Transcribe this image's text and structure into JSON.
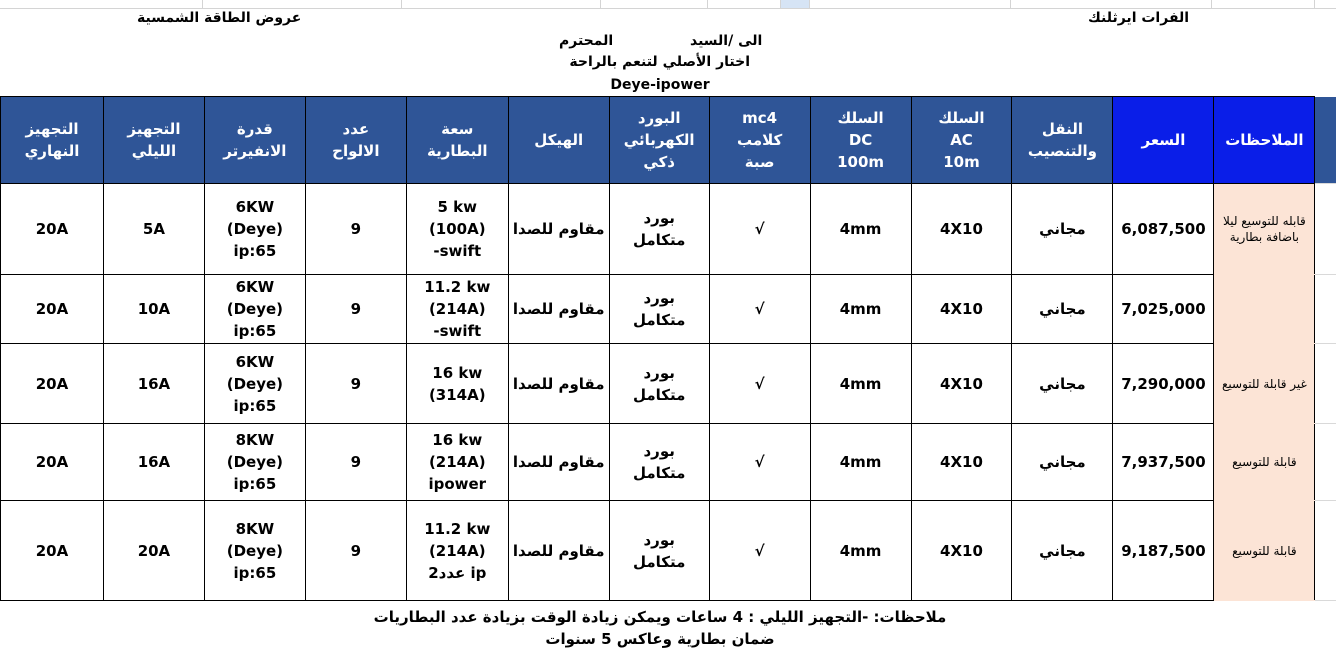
{
  "header": {
    "offers_title": "عروض الطاقة الشمسية",
    "company": "الفرات ايرثلنك",
    "to_sir": "الى /السيد",
    "respected": "المحترم",
    "slogan": "اختار الأصلي لتنعم بالراحة",
    "brand": "Deye-ipower"
  },
  "colors": {
    "header_bg": "#2F5597",
    "highlight_header_bg": "#0A1EE8",
    "notes_bg": "#FCE4D6"
  },
  "table": {
    "columns": [
      "التجهيز\nالنهاري",
      "التجهيز\nالليلي",
      "قدرة\nالانفيرتر",
      "عدد\nالالواح",
      "سعة\nالبطارية",
      "الهيكل",
      "البورد\nالكهربائي\nذكي",
      "mc4\nكلامب\nصبة",
      "السلك\nDC\n100m",
      "السلك\nAC\n10m",
      "النقل\nوالتنصيب",
      "السعر",
      "الملاحظات"
    ],
    "rows": [
      {
        "cells": [
          "20A",
          "5A",
          "6KW (Deye)\nip:65",
          "9",
          "5 kw (100A)\n-swift",
          "مقاوم للصدا",
          "بورد\nمتكامل",
          "√",
          "4mm",
          "4X10",
          "مجاني",
          "6,087,500"
        ],
        "note": "قابله للتوسيع ليلا\nباضافة بطارية"
      },
      {
        "cells": [
          "20A",
          "10A",
          "6KW (Deye)\nip:65",
          "9",
          "11.2 kw\n(214A)\n-swift",
          "مقاوم للصدا",
          "بورد\nمتكامل",
          "√",
          "4mm",
          "4X10",
          "مجاني",
          "7,025,000"
        ],
        "note": ""
      },
      {
        "cells": [
          "20A",
          "16A",
          "6KW (Deye)\nip:65",
          "9",
          "16 kw\n(314A)",
          "مقاوم للصدا",
          "بورد\nمتكامل",
          "√",
          "4mm",
          "4X10",
          "مجاني",
          "7,290,000"
        ],
        "note": "غير قابلة للتوسيع"
      },
      {
        "cells": [
          "20A",
          "16A",
          "8KW (Deye)\nip:65",
          "9",
          "16 kw\n(214A)\nipower",
          "مقاوم للصدا",
          "بورد\nمتكامل",
          "√",
          "4mm",
          "4X10",
          "مجاني",
          "7,937,500"
        ],
        "note": "قابلة للتوسيع"
      },
      {
        "cells": [
          "20A",
          "20A",
          "8KW (Deye)\nip:65",
          "9",
          "11.2 kw\n(214A)\n2عدد ip",
          "مقاوم للصدا",
          "بورد\nمتكامل",
          "√",
          "4mm",
          "4X10",
          "مجاني",
          "9,187,500"
        ],
        "note": "قابلة للتوسيع"
      }
    ]
  },
  "footer": {
    "line1": "ملاحظات: -التجهيز الليلي : 4 ساعات ويمكن زيادة الوقت بزيادة عدد البطاريات",
    "line2": "ضمان بطارية وعاكس 5 سنوات"
  }
}
